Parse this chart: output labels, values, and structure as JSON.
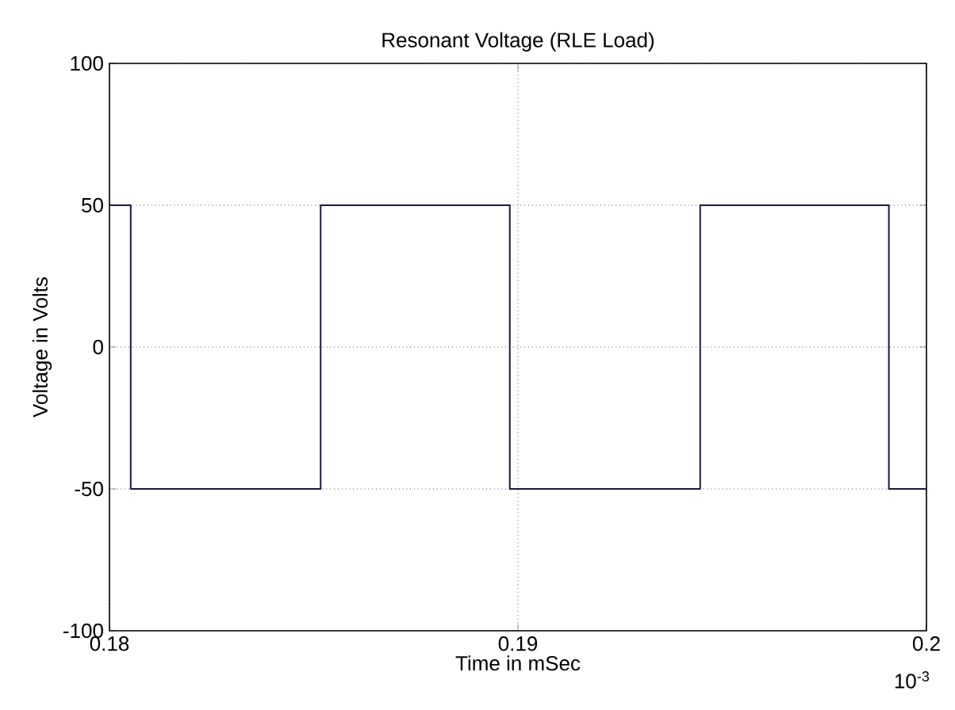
{
  "chart_data": {
    "type": "step",
    "title": "Resonant Voltage (RLE Load)",
    "xlabel": "Time in mSec",
    "ylabel": "Voltage in Volts",
    "annotations": [
      "10$^{-3}$"
    ],
    "x": [
      0.18,
      0.18052,
      0.18517,
      0.1898,
      0.19446,
      0.19908,
      0.2
    ],
    "values": [
      50,
      -50,
      50,
      -50,
      50,
      -50,
      -50
    ],
    "color": "#1a1a40",
    "xlim": [
      0.18,
      0.2
    ],
    "ylim": [
      -100,
      100
    ],
    "xticks": [
      0.18,
      0.19,
      0.2
    ],
    "yticks": [
      -100,
      -50,
      0,
      50,
      100
    ],
    "grid": true,
    "line_style": "solid",
    "marker": "none"
  }
}
